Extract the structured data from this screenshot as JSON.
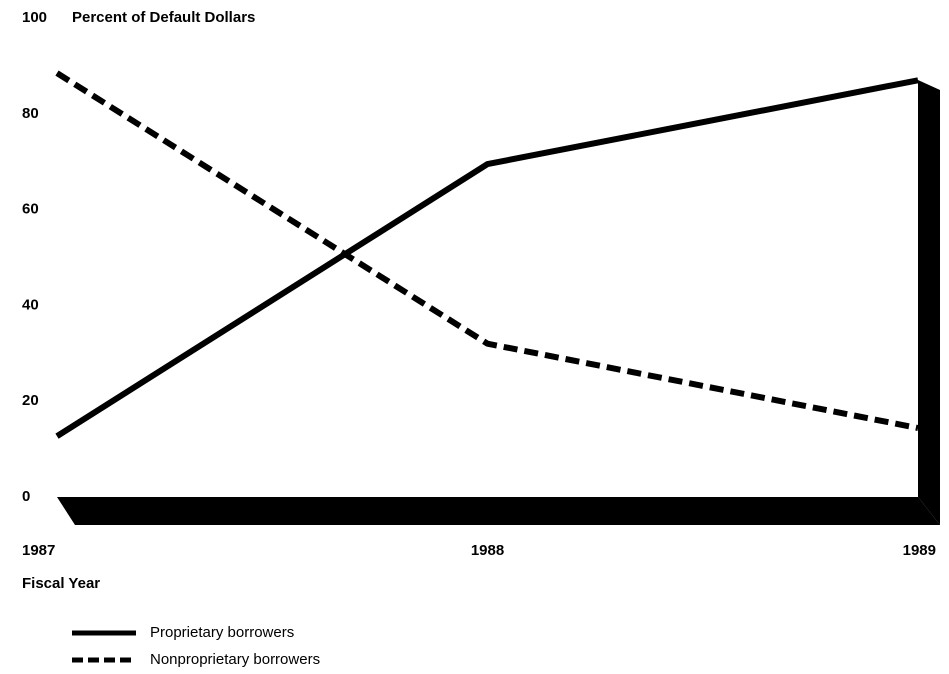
{
  "chart_data": {
    "type": "line",
    "title": "Percent of Default Dollars",
    "x_label": "Fiscal Year",
    "categories": [
      "1987",
      "1988",
      "1989"
    ],
    "series": [
      {
        "name": "Proprietary borrowers",
        "color": "#000000",
        "dash": "solid",
        "values": [
          12.7,
          69.5,
          87
        ]
      },
      {
        "name": "Nonproprietary borrowers",
        "color": "#000000",
        "dash": "dashed",
        "values": [
          88.5,
          32,
          14.4
        ]
      }
    ],
    "ylim": [
      0,
      100
    ],
    "yticks": [
      0,
      20,
      40,
      60,
      80,
      100
    ],
    "grid": false
  }
}
